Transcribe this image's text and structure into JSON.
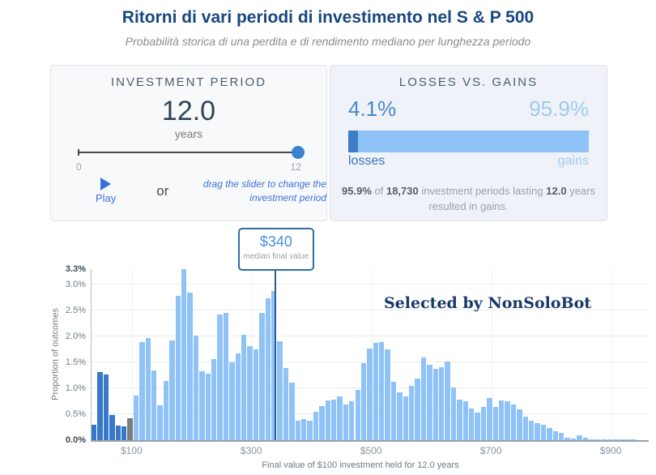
{
  "header": {
    "title": "Ritorni di vari periodi di investimento nel S & P 500",
    "subtitle": "Probabilità storica di una perdita e di rendimento mediano per lunghezza periodo"
  },
  "investment_panel": {
    "heading": "INVESTMENT PERIOD",
    "value": "12.0",
    "unit": "years",
    "slider": {
      "min_label": "0",
      "max_label": "12",
      "min": 0,
      "max": 12,
      "value": 12
    },
    "play_label": "Play",
    "or_label": "or",
    "hint": "drag the slider to change the investment period"
  },
  "losses_panel": {
    "heading": "LOSSES VS. GAINS",
    "loss_pct": "4.1%",
    "gain_pct": "95.9%",
    "loss_pct_value": 4.1,
    "gain_pct_value": 95.9,
    "loss_label": "losses",
    "gain_label": "gains",
    "caption_parts": {
      "p1": "95.9%",
      "p2": " of ",
      "p3": "18,730",
      "p4": " investment periods lasting ",
      "p5": "12.0",
      "p6": " years resulted in gains."
    }
  },
  "chart_data": {
    "type": "bar",
    "subtype": "histogram",
    "median_annotation": {
      "value": "$340",
      "label": "median final value",
      "at_x": 340
    },
    "watermark": "Selected by NonSoloBot",
    "xlabel": "Final value of $100 investment held for 12.0 years",
    "ylabel": "Proportion of outcomes",
    "x_ticks": [
      "$100",
      "$300",
      "$500",
      "$700",
      "$900"
    ],
    "x_tick_values": [
      100,
      300,
      500,
      700,
      900
    ],
    "y_ticks": [
      "0.0%",
      "0.5%",
      "1.0%",
      "1.5%",
      "2.0%",
      "2.5%",
      "3.0%",
      "3.3%"
    ],
    "y_tick_values": [
      0,
      0.5,
      1.0,
      1.5,
      2.0,
      2.5,
      3.0,
      3.3
    ],
    "y_max": 3.3,
    "x_min": 32,
    "bin_width": 10,
    "loss_bins": 6,
    "breakeven_bins": 1,
    "values": [
      0.3,
      1.32,
      1.26,
      0.49,
      0.28,
      0.27,
      0.42,
      0.86,
      1.89,
      1.97,
      1.35,
      0.68,
      1.14,
      1.92,
      2.79,
      3.3,
      2.85,
      2.01,
      1.33,
      1.28,
      1.57,
      2.42,
      2.46,
      1.5,
      1.68,
      2.04,
      1.81,
      1.75,
      2.45,
      2.74,
      2.88,
      1.91,
      1.39,
      1.11,
      0.38,
      0.41,
      0.38,
      0.55,
      0.65,
      0.77,
      0.79,
      0.84,
      0.69,
      0.75,
      0.97,
      1.48,
      1.77,
      1.87,
      1.9,
      1.75,
      1.13,
      0.93,
      0.84,
      1.05,
      1.19,
      1.6,
      1.46,
      1.38,
      1.41,
      1.52,
      1.02,
      0.79,
      0.75,
      0.61,
      0.53,
      0.64,
      0.82,
      0.64,
      0.77,
      0.75,
      0.69,
      0.6,
      0.46,
      0.37,
      0.33,
      0.29,
      0.24,
      0.18,
      0.14,
      0.05,
      0.03,
      0.09,
      0.04,
      0.02,
      0.02,
      0.015,
      0.01,
      0.01,
      0.005,
      0.005,
      0.005
    ],
    "colors": {
      "gain": "#8fc3f7",
      "loss": "#3878c8",
      "breakeven": "#7d7d7d",
      "median_line": "#2c5d87",
      "accent_blue": "#4a90d9",
      "title_navy": "#17477e"
    }
  }
}
